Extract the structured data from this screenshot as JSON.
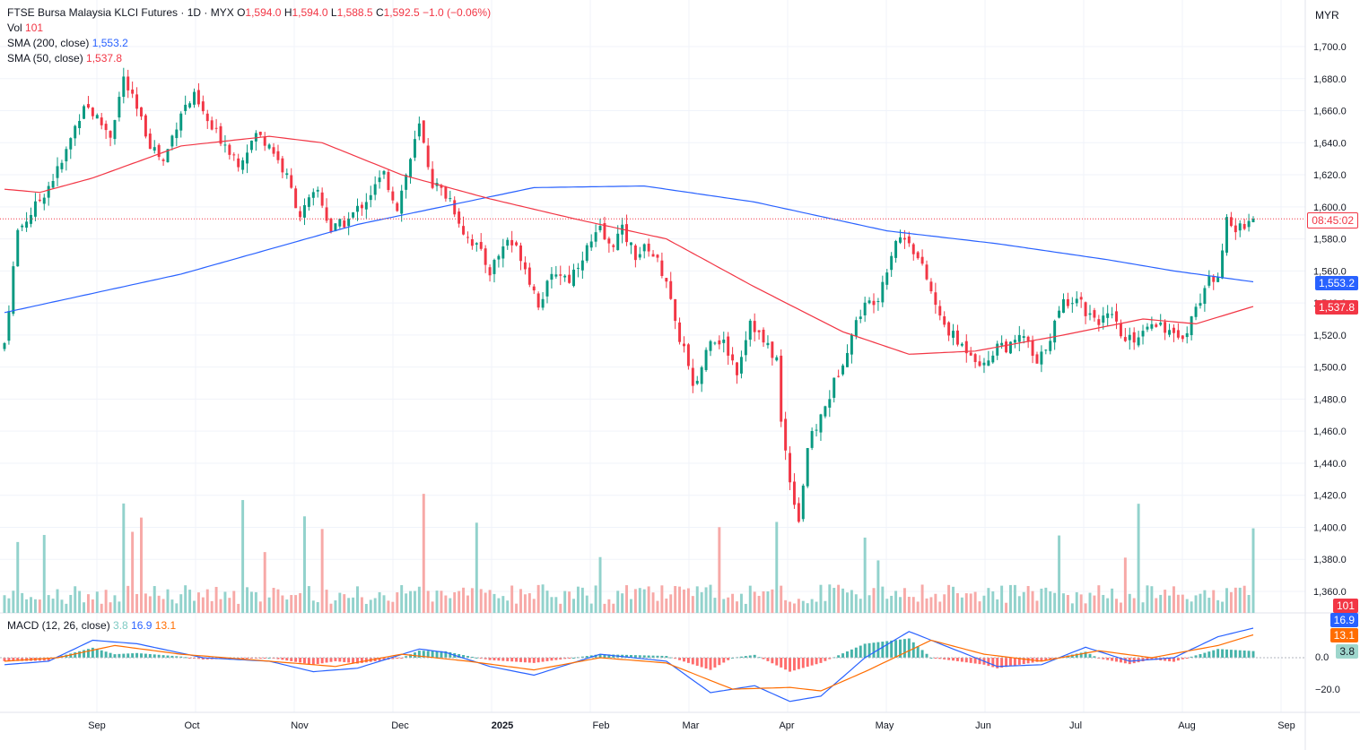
{
  "header": {
    "symbol": "FTSE Bursa Malaysia KLCI Futures · 1D · MYX",
    "o_label": "O",
    "o": "1,594.0",
    "h_label": "H",
    "h": "1,594.0",
    "l_label": "L",
    "l": "1,588.5",
    "c_label": "C",
    "c": "1,592.5",
    "change": "−1.0 (−0.06%)"
  },
  "legend": {
    "vol_label": "Vol",
    "vol": "101",
    "sma200_label": "SMA (200, close)",
    "sma200": "1,553.2",
    "sma50_label": "SMA (50, close)",
    "sma50": "1,537.8",
    "macd_label": "MACD (12, 26, close)",
    "macd_hist": "3.8",
    "macd_line": "16.9",
    "macd_signal": "13.1"
  },
  "currency": "MYR",
  "tags": {
    "countdown": "08:45:02",
    "sma200": "1,553.2",
    "sma50": "1,537.8",
    "vol": "101",
    "macd_line": "16.9",
    "macd_signal": "13.1",
    "macd_hist": "3.8"
  },
  "colors": {
    "up": "#089981",
    "down": "#f23645",
    "sma200": "#2962ff",
    "sma50": "#f23645",
    "signal": "#ff6d00"
  },
  "chart_data": {
    "type": "candlestick",
    "price_axis": {
      "ticks": [
        1360,
        1380,
        1400,
        1420,
        1440,
        1460,
        1480,
        1500,
        1520,
        1540,
        1560,
        1580,
        1600,
        1620,
        1640,
        1660,
        1680,
        1700
      ],
      "range": [
        1350,
        1718
      ]
    },
    "macd_axis": {
      "ticks": [
        "−20.0",
        "0.0"
      ],
      "range": [
        -26,
        20
      ]
    },
    "x_ticks": [
      "Sep",
      "Oct",
      "Nov",
      "Dec",
      "2025",
      "Feb",
      "Mar",
      "Apr",
      "May",
      "Jun",
      "Jul",
      "Aug",
      "Sep"
    ],
    "last_price": 1592.5,
    "close_path": [
      [
        0,
        1515
      ],
      [
        3,
        1585
      ],
      [
        7,
        1600
      ],
      [
        13,
        1627
      ],
      [
        18,
        1665
      ],
      [
        24,
        1645
      ],
      [
        27,
        1680
      ],
      [
        30,
        1660
      ],
      [
        33,
        1640
      ],
      [
        36,
        1628
      ],
      [
        40,
        1660
      ],
      [
        43,
        1668
      ],
      [
        47,
        1648
      ],
      [
        50,
        1640
      ],
      [
        53,
        1628
      ],
      [
        57,
        1645
      ],
      [
        60,
        1640
      ],
      [
        64,
        1618
      ],
      [
        67,
        1595
      ],
      [
        71,
        1610
      ],
      [
        74,
        1585
      ],
      [
        78,
        1592
      ],
      [
        82,
        1605
      ],
      [
        86,
        1620
      ],
      [
        89,
        1600
      ],
      [
        94,
        1650
      ],
      [
        97,
        1615
      ],
      [
        101,
        1605
      ],
      [
        104,
        1585
      ],
      [
        107,
        1575
      ],
      [
        110,
        1560
      ],
      [
        114,
        1580
      ],
      [
        117,
        1570
      ],
      [
        121,
        1540
      ],
      [
        125,
        1560
      ],
      [
        128,
        1555
      ],
      [
        131,
        1570
      ],
      [
        135,
        1585
      ],
      [
        137,
        1575
      ],
      [
        140,
        1585
      ],
      [
        143,
        1570
      ],
      [
        146,
        1575
      ],
      [
        150,
        1555
      ],
      [
        152,
        1525
      ],
      [
        154,
        1512
      ],
      [
        156,
        1485
      ],
      [
        158,
        1500
      ],
      [
        160,
        1520
      ],
      [
        163,
        1515
      ],
      [
        166,
        1498
      ],
      [
        169,
        1530
      ],
      [
        172,
        1515
      ],
      [
        175,
        1505
      ],
      [
        176,
        1465
      ],
      [
        178,
        1430
      ],
      [
        180,
        1405
      ],
      [
        182,
        1450
      ],
      [
        186,
        1475
      ],
      [
        190,
        1505
      ],
      [
        194,
        1535
      ],
      [
        198,
        1545
      ],
      [
        202,
        1580
      ],
      [
        205,
        1580
      ],
      [
        209,
        1555
      ],
      [
        212,
        1530
      ],
      [
        216,
        1515
      ],
      [
        219,
        1510
      ],
      [
        222,
        1500
      ],
      [
        225,
        1515
      ],
      [
        228,
        1512
      ],
      [
        231,
        1520
      ],
      [
        234,
        1500
      ],
      [
        237,
        1520
      ],
      [
        240,
        1540
      ],
      [
        243,
        1545
      ],
      [
        245,
        1535
      ],
      [
        248,
        1530
      ],
      [
        251,
        1530
      ],
      [
        254,
        1515
      ],
      [
        257,
        1520
      ],
      [
        260,
        1530
      ],
      [
        263,
        1525
      ],
      [
        266,
        1515
      ],
      [
        269,
        1530
      ],
      [
        272,
        1550
      ],
      [
        275,
        1560
      ],
      [
        277,
        1590
      ],
      [
        279,
        1585
      ],
      [
        281,
        1590
      ],
      [
        283,
        1592.5
      ]
    ],
    "sma200_path": [
      [
        0,
        1534
      ],
      [
        40,
        1558
      ],
      [
        80,
        1589
      ],
      [
        120,
        1612
      ],
      [
        145,
        1613
      ],
      [
        170,
        1603
      ],
      [
        200,
        1585
      ],
      [
        225,
        1577
      ],
      [
        250,
        1567
      ],
      [
        265,
        1560
      ],
      [
        283,
        1553.2
      ]
    ],
    "sma50_path": [
      [
        0,
        1611
      ],
      [
        8,
        1609
      ],
      [
        20,
        1618
      ],
      [
        40,
        1638
      ],
      [
        60,
        1644
      ],
      [
        72,
        1640
      ],
      [
        90,
        1620
      ],
      [
        110,
        1605
      ],
      [
        130,
        1592
      ],
      [
        150,
        1580
      ],
      [
        170,
        1550
      ],
      [
        190,
        1522
      ],
      [
        205,
        1508
      ],
      [
        220,
        1510
      ],
      [
        240,
        1520
      ],
      [
        258,
        1530
      ],
      [
        270,
        1527
      ],
      [
        283,
        1537.8
      ]
    ],
    "macd_path": [
      [
        0,
        -4
      ],
      [
        10,
        -2
      ],
      [
        20,
        10
      ],
      [
        30,
        8
      ],
      [
        45,
        0
      ],
      [
        60,
        -2
      ],
      [
        70,
        -8
      ],
      [
        80,
        -6
      ],
      [
        94,
        5
      ],
      [
        100,
        3
      ],
      [
        110,
        -5
      ],
      [
        120,
        -10
      ],
      [
        135,
        2
      ],
      [
        150,
        -2
      ],
      [
        160,
        -20
      ],
      [
        170,
        -16
      ],
      [
        178,
        -25
      ],
      [
        185,
        -22
      ],
      [
        195,
        0
      ],
      [
        205,
        15
      ],
      [
        215,
        5
      ],
      [
        225,
        -5
      ],
      [
        235,
        -4
      ],
      [
        245,
        6
      ],
      [
        255,
        -2
      ],
      [
        265,
        0
      ],
      [
        275,
        12
      ],
      [
        283,
        16.9
      ]
    ],
    "signal_path": [
      [
        0,
        -2
      ],
      [
        12,
        0
      ],
      [
        25,
        7
      ],
      [
        40,
        2
      ],
      [
        60,
        -2
      ],
      [
        75,
        -5
      ],
      [
        90,
        2
      ],
      [
        105,
        -2
      ],
      [
        120,
        -7
      ],
      [
        135,
        0
      ],
      [
        150,
        -3
      ],
      [
        165,
        -18
      ],
      [
        178,
        -17
      ],
      [
        185,
        -19
      ],
      [
        195,
        -8
      ],
      [
        210,
        10
      ],
      [
        222,
        2
      ],
      [
        235,
        -2
      ],
      [
        248,
        4
      ],
      [
        260,
        0
      ],
      [
        275,
        7
      ],
      [
        283,
        13.1
      ]
    ]
  }
}
